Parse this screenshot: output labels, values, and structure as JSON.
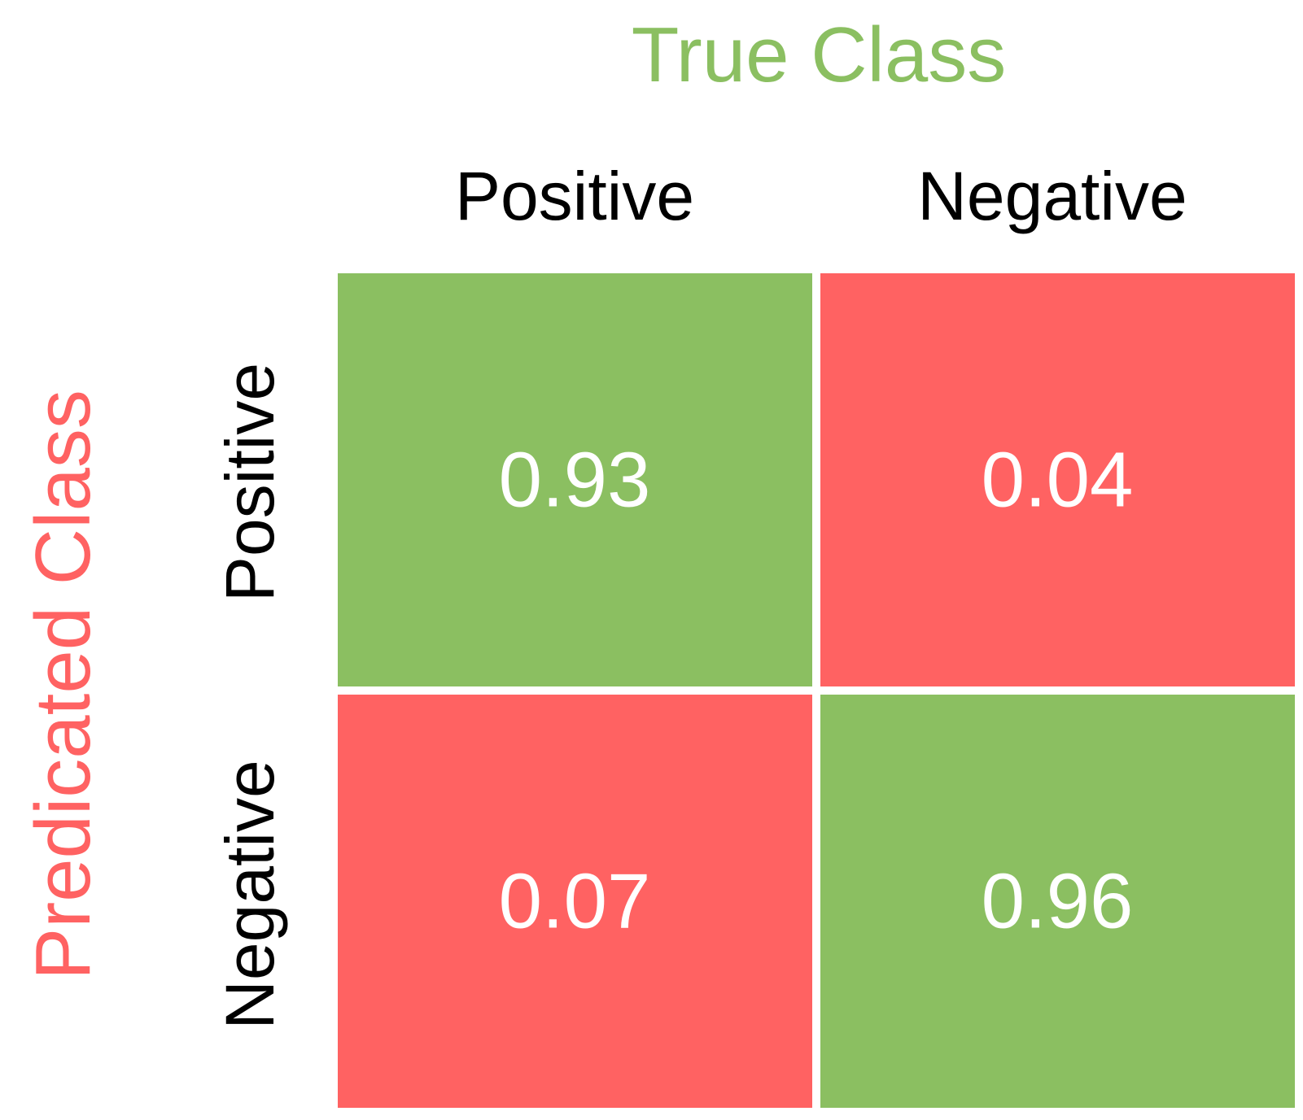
{
  "chart_data": {
    "type": "heatmap",
    "x_title": "True Class",
    "y_title": "Predicated Class",
    "x_categories": [
      "Positive",
      "Negative"
    ],
    "y_categories": [
      "Positive",
      "Negative"
    ],
    "values": [
      [
        0.93,
        0.04
      ],
      [
        0.07,
        0.96
      ]
    ],
    "value_labels": [
      [
        "0.93",
        "0.04"
      ],
      [
        "0.07",
        "0.96"
      ]
    ],
    "colors": {
      "correct": "#8bbf61",
      "incorrect": "#ff6262",
      "x_title": "#8bbf61",
      "y_title": "#ff6262",
      "category_label": "#000000",
      "value_label": "#ffffff",
      "cell_gap": "#ffffff"
    }
  }
}
